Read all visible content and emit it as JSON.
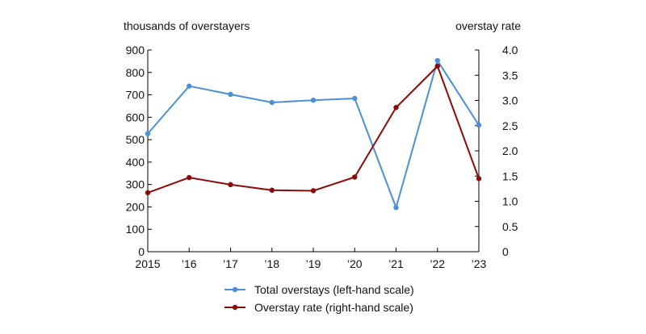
{
  "chart_data": {
    "type": "line",
    "categories": [
      "2015",
      "’16",
      "’17",
      "’18",
      "’19",
      "’20",
      "’21",
      "’22",
      "’23"
    ],
    "left_axis": {
      "title": "thousands of overstayers",
      "range": [
        0,
        900
      ],
      "ticks": [
        "0",
        "100",
        "200",
        "300",
        "400",
        "500",
        "600",
        "700",
        "800",
        "900"
      ]
    },
    "right_axis": {
      "title": "overstay rate",
      "range": [
        0,
        4.0
      ],
      "ticks": [
        "0",
        "0.5",
        "1.0",
        "1.5",
        "2.0",
        "2.5",
        "3.0",
        "3.5",
        "4.0"
      ]
    },
    "series": [
      {
        "name": "Total overstays (left-hand scale)",
        "axis": "left",
        "color": "#4a90d9",
        "values": [
          527,
          739,
          702,
          666,
          676,
          684,
          197,
          853,
          565
        ]
      },
      {
        "name": "Overstay rate (right-hand scale)",
        "axis": "right",
        "color": "#8b0a0a",
        "values": [
          1.17,
          1.47,
          1.33,
          1.22,
          1.21,
          1.48,
          2.86,
          3.68,
          1.45
        ]
      }
    ],
    "grid": false,
    "legend_position": "bottom-center"
  }
}
